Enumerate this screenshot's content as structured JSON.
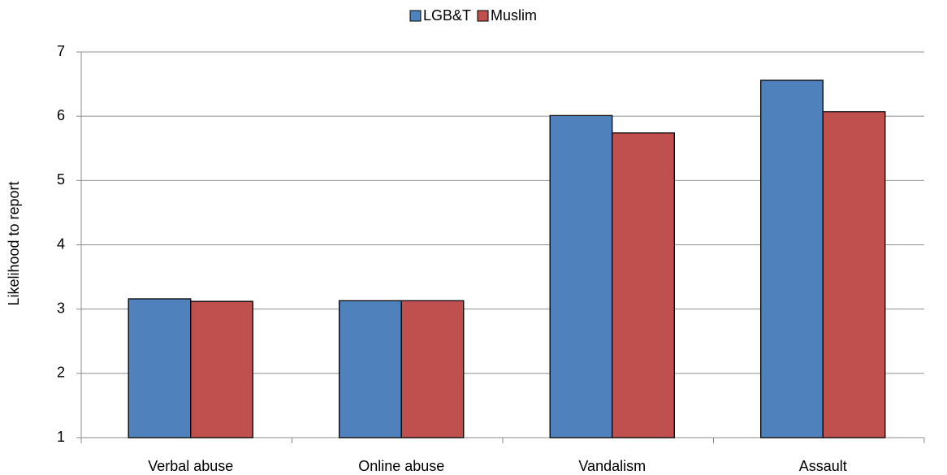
{
  "chart_data": {
    "type": "bar",
    "y_label": "Likelihood to report",
    "categories": [
      "Verbal abuse",
      "Online abuse",
      "Vandalism",
      "Assault"
    ],
    "series": [
      {
        "name": "LGB&T",
        "color": "#4f81bd",
        "values": [
          3.16,
          3.13,
          6.01,
          6.56
        ]
      },
      {
        "name": "Muslim",
        "color": "#c0504d",
        "values": [
          3.12,
          3.13,
          5.74,
          6.07
        ]
      }
    ],
    "ylim": [
      1,
      7
    ],
    "yticks": [
      1,
      2,
      3,
      4,
      5,
      6,
      7
    ],
    "grid": true,
    "legend": "top"
  }
}
